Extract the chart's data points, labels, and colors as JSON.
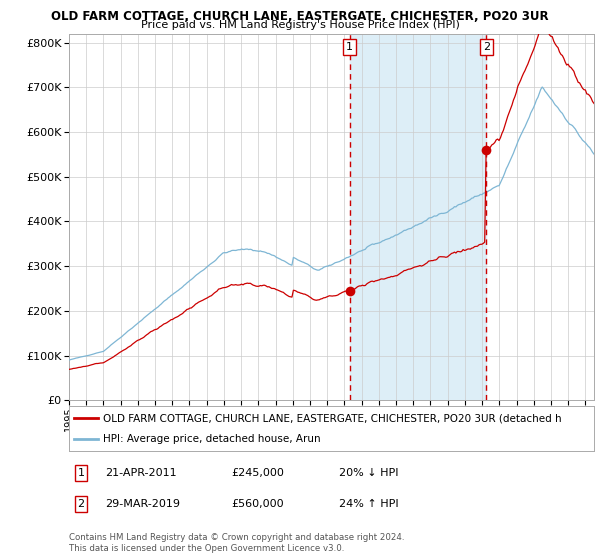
{
  "title1": "OLD FARM COTTAGE, CHURCH LANE, EASTERGATE, CHICHESTER, PO20 3UR",
  "title2": "Price paid vs. HM Land Registry's House Price Index (HPI)",
  "ylim": [
    0,
    820000
  ],
  "yticks": [
    0,
    100000,
    200000,
    300000,
    400000,
    500000,
    600000,
    700000,
    800000
  ],
  "ytick_labels": [
    "£0",
    "£100K",
    "£200K",
    "£300K",
    "£400K",
    "£500K",
    "£600K",
    "£700K",
    "£800K"
  ],
  "x_start_year": 1995,
  "x_end_year": 2025,
  "purchase1_year": 2011.3,
  "purchase1_value": 245000,
  "purchase2_year": 2019.24,
  "purchase2_value": 560000,
  "hpi_color": "#7eb6d4",
  "price_color": "#cc0000",
  "shaded_region_color": "#ddeef7",
  "grid_color": "#cccccc",
  "background_color": "#ffffff",
  "legend_line1": "OLD FARM COTTAGE, CHURCH LANE, EASTERGATE, CHICHESTER, PO20 3UR (detached h",
  "legend_line2": "HPI: Average price, detached house, Arun",
  "annotation1_date": "21-APR-2011",
  "annotation1_price": "£245,000",
  "annotation1_hpi": "20% ↓ HPI",
  "annotation2_date": "29-MAR-2019",
  "annotation2_price": "£560,000",
  "annotation2_hpi": "24% ↑ HPI",
  "footer": "Contains HM Land Registry data © Crown copyright and database right 2024.\nThis data is licensed under the Open Government Licence v3.0."
}
